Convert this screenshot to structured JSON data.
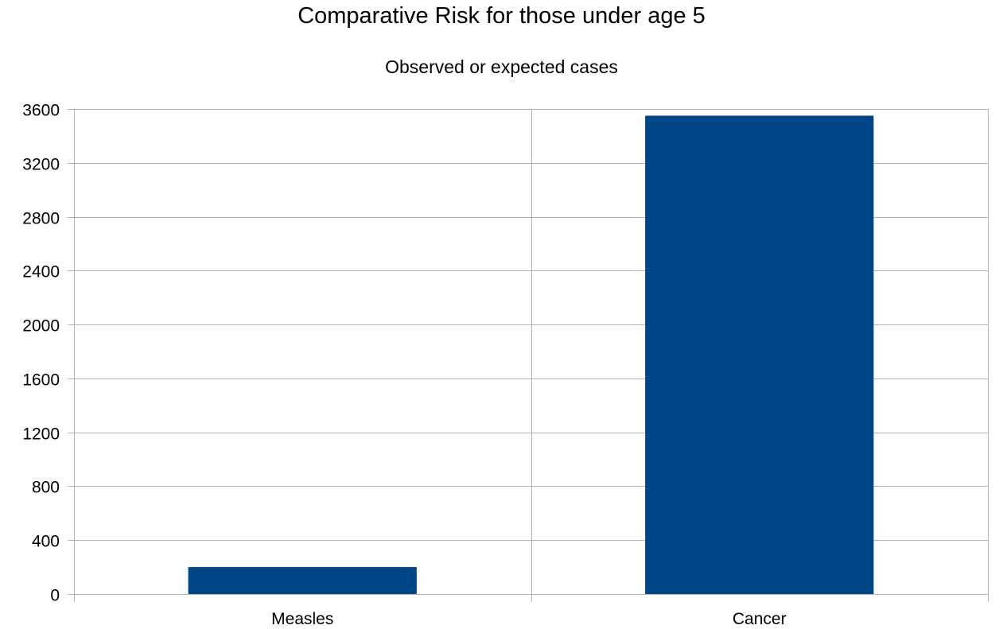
{
  "chart_data": {
    "type": "bar",
    "title": "Comparative Risk for those under age 5",
    "subtitle": "Observed or expected cases",
    "xlabel": "",
    "ylabel": "",
    "categories": [
      "Measles",
      "Cancer"
    ],
    "values": [
      200,
      3550
    ],
    "ylim": [
      0,
      3600
    ],
    "yticks": [
      0,
      400,
      800,
      1200,
      1600,
      2000,
      2400,
      2800,
      3200,
      3600
    ],
    "grid": true,
    "legend": "none",
    "bar_color": "#004586",
    "grid_color": "#b3b3b3"
  }
}
